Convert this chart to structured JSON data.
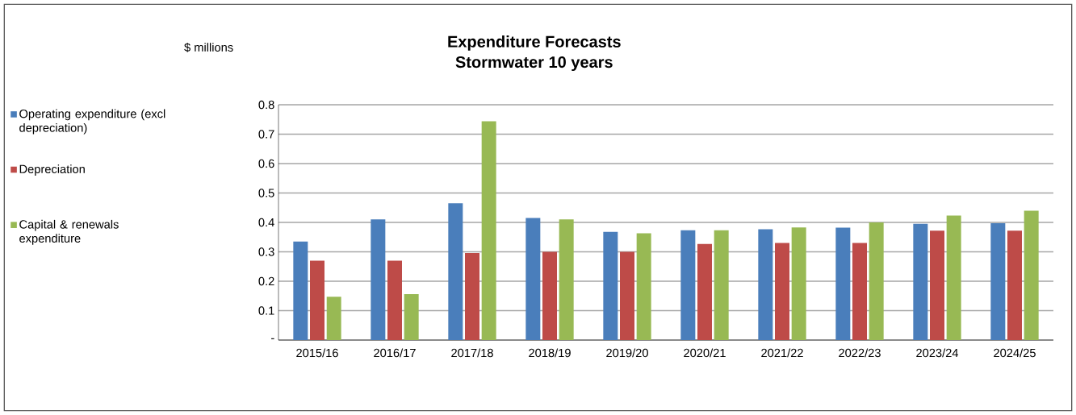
{
  "chart_data": {
    "type": "bar",
    "title": "Expenditure Forecasts\nStormwater  10 years",
    "ylabel": "$ millions",
    "categories": [
      "2015/16",
      "2016/17",
      "2017/18",
      "2018/19",
      "2019/20",
      "2020/21",
      "2021/22",
      "2022/23",
      "2023/24",
      "2024/25"
    ],
    "series": [
      {
        "name": "Operating expenditure (excl depreciation)",
        "color": "#4a7ebb",
        "values": [
          0.335,
          0.41,
          0.465,
          0.415,
          0.368,
          0.373,
          0.377,
          0.382,
          0.395,
          0.397
        ]
      },
      {
        "name": "Depreciation",
        "color": "#be4b48",
        "values": [
          0.27,
          0.27,
          0.296,
          0.3,
          0.3,
          0.327,
          0.33,
          0.33,
          0.372,
          0.372
        ]
      },
      {
        "name": "Capital & renewals expenditure",
        "color": "#98b954",
        "values": [
          0.147,
          0.156,
          0.744,
          0.41,
          0.363,
          0.373,
          0.383,
          0.4,
          0.423,
          0.44
        ]
      }
    ],
    "ylim": [
      0,
      0.8
    ],
    "yticks": [
      {
        "value": 0,
        "label": "-"
      },
      0.1,
      0.2,
      0.3,
      0.4,
      0.5,
      0.6,
      0.7,
      0.8
    ],
    "grid": "y",
    "legend": "left"
  }
}
